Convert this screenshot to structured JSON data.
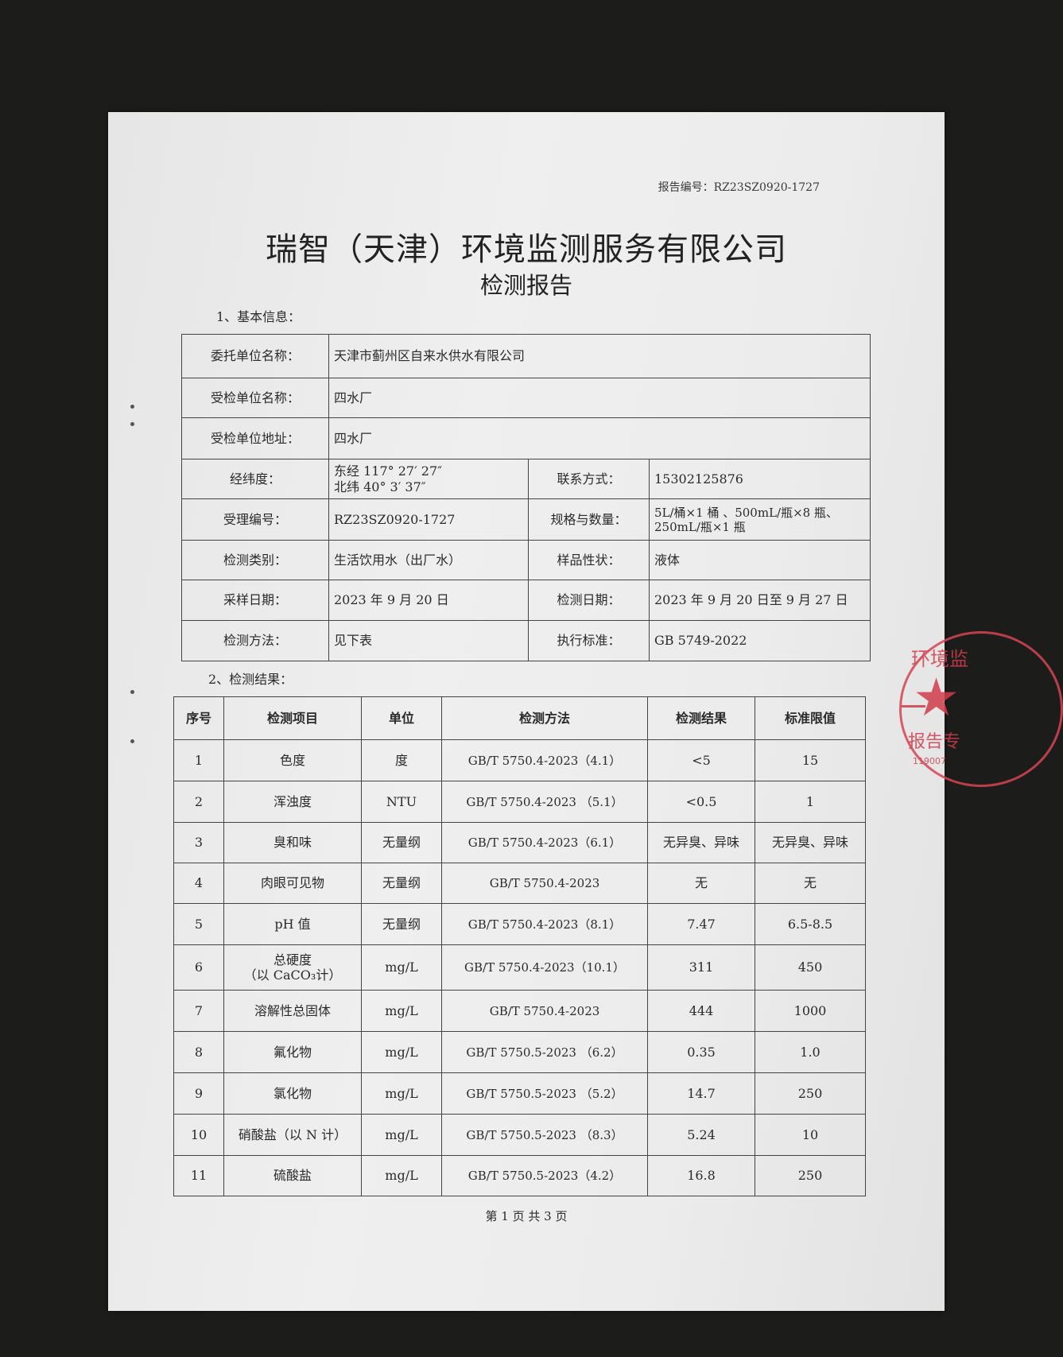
{
  "report_number": "报告编号：RZ23SZ0920-1727",
  "title": "瑞智（天津）环境监测服务有限公司",
  "subtitle": "检测报告",
  "section1": "1、基本信息：",
  "basic_info": {
    "client_label": "委托单位名称：",
    "client": "天津市蓟州区自来水供水有限公司",
    "inspected_label": "受检单位名称：",
    "inspected": "四水厂",
    "address_label": "受检单位地址：",
    "address": "四水厂",
    "coords_label": "经纬度：",
    "longitude": "东经 117° 27′ 27″",
    "latitude": "北纬 40° 3′ 37″",
    "contact_label": "联系方式：",
    "contact": "15302125876",
    "accept_no_label": "受理编号：",
    "accept_no": "RZ23SZ0920-1727",
    "spec_label": "规格与数量：",
    "spec_line1": "5L/桶×1 桶 、500mL/瓶×8 瓶、",
    "spec_line2": "250mL/瓶×1 瓶",
    "category_label": "检测类别：",
    "category": "生活饮用水（出厂水）",
    "sample_state_label": "样品性状：",
    "sample_state": "液体",
    "sampling_date_label": "采样日期：",
    "sampling_date": "2023 年 9 月 20 日",
    "test_date_label": "检测日期：",
    "test_date": "2023 年 9 月 20 日至 9 月 27 日",
    "method_label": "检测方法：",
    "method": "见下表",
    "standard_label": "执行标准：",
    "standard": "GB 5749-2022"
  },
  "section2": "2、检测结果：",
  "results": {
    "headers": [
      "序号",
      "检测项目",
      "单位",
      "检测方法",
      "检测结果",
      "标准限值"
    ],
    "rows": [
      [
        "1",
        "色度",
        "度",
        "GB/T 5750.4-2023（4.1）",
        "<5",
        "15"
      ],
      [
        "2",
        "浑浊度",
        "NTU",
        "GB/T 5750.4-2023 （5.1）",
        "<0.5",
        "1"
      ],
      [
        "3",
        "臭和味",
        "无量纲",
        "GB/T 5750.4-2023（6.1）",
        "无异臭、异味",
        "无异臭、异味"
      ],
      [
        "4",
        "肉眼可见物",
        "无量纲",
        "GB/T 5750.4-2023",
        "无",
        "无"
      ],
      [
        "5",
        "pH 值",
        "无量纲",
        "GB/T 5750.4-2023（8.1）",
        "7.47",
        "6.5-8.5"
      ],
      [
        "6",
        "总硬度\n（以 CaCO₃计）",
        "mg/L",
        "GB/T 5750.4-2023（10.1）",
        "311",
        "450"
      ],
      [
        "7",
        "溶解性总固体",
        "mg/L",
        "GB/T 5750.4-2023",
        "444",
        "1000"
      ],
      [
        "8",
        "氟化物",
        "mg/L",
        "GB/T 5750.5-2023 （6.2）",
        "0.35",
        "1.0"
      ],
      [
        "9",
        "氯化物",
        "mg/L",
        "GB/T 5750.5-2023 （5.2）",
        "14.7",
        "250"
      ],
      [
        "10",
        "硝酸盐（以 N 计）",
        "mg/L",
        "GB/T 5750.5-2023 （8.3）",
        "5.24",
        "10"
      ],
      [
        "11",
        "硫酸盐",
        "mg/L",
        "GB/T 5750.5-2023（4.2）",
        "16.8",
        "250"
      ]
    ]
  },
  "footer": "第 1 页 共 3 页",
  "stamp": {
    "text_top": "环境监",
    "text_mid": "报告专",
    "code": "119007",
    "color": "#d23c4b"
  }
}
